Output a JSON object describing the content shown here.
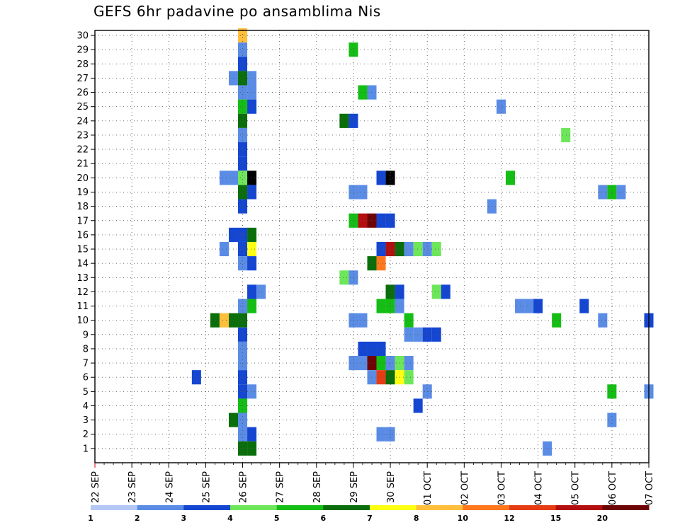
{
  "chart_data": {
    "type": "heatmap",
    "title": "GEFS 6hr padavine po ansamblima Nis",
    "x_tick_labels": [
      "22 SEP",
      "23 SEP",
      "24 SEP",
      "25 SEP",
      "26 SEP",
      "27 SEP",
      "28 SEP",
      "29 SEP",
      "30 SEP",
      "01 OCT",
      "02 OCT",
      "03 OCT",
      "04 OCT",
      "05 OCT",
      "06 OCT",
      "07 OCT"
    ],
    "y_tick_labels": [
      "1",
      "2",
      "3",
      "4",
      "5",
      "6",
      "7",
      "8",
      "9",
      "10",
      "11",
      "12",
      "13",
      "14",
      "15",
      "16",
      "17",
      "18",
      "19",
      "20",
      "21",
      "22",
      "23",
      "24",
      "25",
      "26",
      "27",
      "28",
      "29",
      "30"
    ],
    "x_range_days": [
      0,
      15
    ],
    "y_range": [
      0,
      30
    ],
    "x_unit": "days from 22 SEP",
    "grid": true,
    "colorbar": {
      "labels": [
        "1",
        "2",
        "3",
        "4",
        "5",
        "6",
        "7",
        "8",
        "10",
        "12",
        "15",
        "20"
      ],
      "colors": [
        "#b4c8f5",
        "#5a8ce6",
        "#1446d2",
        "#6ee65a",
        "#14be14",
        "#0a6e0a",
        "#ffff14",
        "#ffbe3c",
        "#ff781e",
        "#e63c14",
        "#b40f0f",
        "#6e0505"
      ]
    },
    "cells": [
      [
        30,
        4.0,
        7
      ],
      [
        29,
        4.0,
        1
      ],
      [
        29,
        7.0,
        4
      ],
      [
        28,
        4.0,
        2
      ],
      [
        27,
        3.75,
        1
      ],
      [
        27,
        4.0,
        5
      ],
      [
        27,
        4.25,
        1
      ],
      [
        26,
        4.0,
        1
      ],
      [
        26,
        4.25,
        1
      ],
      [
        26,
        7.25,
        4
      ],
      [
        26,
        7.5,
        1
      ],
      [
        25,
        4.0,
        4
      ],
      [
        25,
        4.25,
        2
      ],
      [
        25,
        11.0,
        1
      ],
      [
        24,
        4.0,
        5
      ],
      [
        24,
        6.75,
        5
      ],
      [
        24,
        7.0,
        2
      ],
      [
        23,
        4.0,
        1
      ],
      [
        23,
        12.75,
        3
      ],
      [
        22,
        4.0,
        2
      ],
      [
        21,
        4.0,
        2
      ],
      [
        20,
        3.5,
        1
      ],
      [
        20,
        3.75,
        1
      ],
      [
        20,
        4.0,
        3
      ],
      [
        20,
        4.25,
        12
      ],
      [
        20,
        7.75,
        2
      ],
      [
        20,
        8.0,
        12
      ],
      [
        20,
        11.25,
        4
      ],
      [
        19,
        4.0,
        5
      ],
      [
        19,
        4.25,
        2
      ],
      [
        19,
        7.0,
        1
      ],
      [
        19,
        7.25,
        1
      ],
      [
        19,
        13.75,
        1
      ],
      [
        19,
        14.0,
        4
      ],
      [
        19,
        14.25,
        1
      ],
      [
        18,
        4.0,
        2
      ],
      [
        18,
        10.75,
        1
      ],
      [
        17,
        7.0,
        4
      ],
      [
        17,
        7.25,
        10
      ],
      [
        17,
        7.5,
        11
      ],
      [
        17,
        7.75,
        2
      ],
      [
        17,
        8.0,
        2
      ],
      [
        16,
        3.75,
        2
      ],
      [
        16,
        4.0,
        2
      ],
      [
        16,
        4.25,
        5
      ],
      [
        15,
        3.5,
        1
      ],
      [
        15,
        4.0,
        2
      ],
      [
        15,
        4.25,
        6
      ],
      [
        15,
        7.75,
        2
      ],
      [
        15,
        8.0,
        10
      ],
      [
        15,
        8.25,
        5
      ],
      [
        15,
        8.5,
        1
      ],
      [
        15,
        8.75,
        3
      ],
      [
        15,
        9.0,
        1
      ],
      [
        15,
        9.25,
        3
      ],
      [
        14,
        4.0,
        1
      ],
      [
        14,
        4.25,
        2
      ],
      [
        14,
        7.5,
        5
      ],
      [
        14,
        7.75,
        8
      ],
      [
        13,
        6.75,
        3
      ],
      [
        13,
        7.0,
        1
      ],
      [
        12,
        4.25,
        2
      ],
      [
        12,
        4.5,
        1
      ],
      [
        12,
        8.0,
        5
      ],
      [
        12,
        8.25,
        2
      ],
      [
        12,
        9.25,
        3
      ],
      [
        12,
        9.5,
        2
      ],
      [
        11,
        4.0,
        1
      ],
      [
        11,
        4.25,
        4
      ],
      [
        11,
        7.75,
        4
      ],
      [
        11,
        8.0,
        4
      ],
      [
        11,
        8.25,
        1
      ],
      [
        11,
        11.5,
        1
      ],
      [
        11,
        11.75,
        1
      ],
      [
        11,
        12.0,
        2
      ],
      [
        11,
        13.25,
        2
      ],
      [
        10,
        3.25,
        5
      ],
      [
        10,
        3.5,
        7
      ],
      [
        10,
        3.75,
        5
      ],
      [
        10,
        4.0,
        5
      ],
      [
        10,
        7.0,
        1
      ],
      [
        10,
        7.25,
        1
      ],
      [
        10,
        8.5,
        4
      ],
      [
        10,
        12.5,
        4
      ],
      [
        10,
        13.75,
        1
      ],
      [
        10,
        15.0,
        2
      ],
      [
        9,
        4.0,
        2
      ],
      [
        9,
        8.5,
        1
      ],
      [
        9,
        8.75,
        1
      ],
      [
        9,
        9.0,
        2
      ],
      [
        9,
        9.25,
        2
      ],
      [
        8,
        4.0,
        1
      ],
      [
        8,
        7.25,
        2
      ],
      [
        8,
        7.5,
        2
      ],
      [
        8,
        7.75,
        2
      ],
      [
        7,
        4.0,
        1
      ],
      [
        7,
        7.0,
        1
      ],
      [
        7,
        7.25,
        1
      ],
      [
        7,
        7.5,
        11
      ],
      [
        7,
        7.75,
        4
      ],
      [
        7,
        8.0,
        1
      ],
      [
        7,
        8.25,
        3
      ],
      [
        7,
        8.5,
        1
      ],
      [
        6,
        2.75,
        2
      ],
      [
        6,
        4.0,
        2
      ],
      [
        6,
        7.5,
        1
      ],
      [
        6,
        7.75,
        9
      ],
      [
        6,
        8.0,
        5
      ],
      [
        6,
        8.25,
        6
      ],
      [
        6,
        8.5,
        3
      ],
      [
        5,
        4.0,
        2
      ],
      [
        5,
        4.25,
        1
      ],
      [
        5,
        9.0,
        1
      ],
      [
        5,
        14.0,
        4
      ],
      [
        5,
        15.0,
        1
      ],
      [
        4,
        4.0,
        4
      ],
      [
        4,
        8.75,
        2
      ],
      [
        3,
        3.75,
        5
      ],
      [
        3,
        4.0,
        1
      ],
      [
        3,
        14.0,
        1
      ],
      [
        2,
        4.0,
        1
      ],
      [
        2,
        4.25,
        2
      ],
      [
        2,
        7.75,
        1
      ],
      [
        2,
        8.0,
        1
      ],
      [
        1,
        4.0,
        5
      ],
      [
        1,
        4.25,
        5
      ],
      [
        1,
        12.25,
        1
      ]
    ]
  }
}
